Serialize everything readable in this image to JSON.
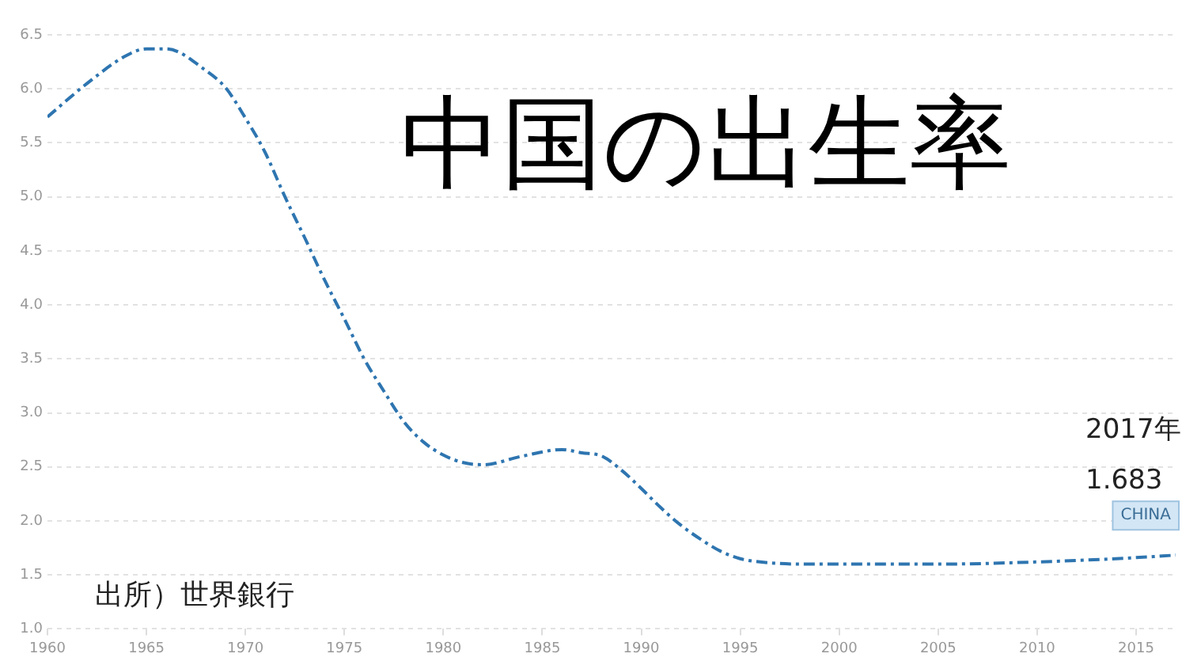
{
  "chart_data": {
    "type": "line",
    "title": "中国の出生率",
    "x": [
      1960,
      1962,
      1964,
      1965,
      1966,
      1968,
      1969,
      1970,
      1971,
      1972,
      1973,
      1974,
      1975,
      1976,
      1977,
      1978,
      1979,
      1980,
      1981,
      1982,
      1984,
      1986,
      1987,
      1988,
      1989,
      1990,
      1991,
      1992,
      1993,
      1994,
      1995,
      1996,
      1998,
      2000,
      2005,
      2010,
      2015,
      2017
    ],
    "series": [
      {
        "name": "CHINA",
        "color": "#2e75b0",
        "values": [
          5.74,
          6.05,
          6.31,
          6.37,
          6.37,
          6.17,
          6.01,
          5.73,
          5.41,
          5.0,
          4.62,
          4.23,
          3.87,
          3.5,
          3.2,
          2.92,
          2.73,
          2.61,
          2.54,
          2.52,
          2.6,
          2.66,
          2.63,
          2.6,
          2.47,
          2.3,
          2.12,
          1.96,
          1.83,
          1.72,
          1.65,
          1.62,
          1.6,
          1.6,
          1.6,
          1.62,
          1.66,
          1.683
        ]
      }
    ],
    "xlim": [
      1960,
      2017
    ],
    "xticks": [
      1960,
      1965,
      1970,
      1975,
      1980,
      1985,
      1990,
      1995,
      2000,
      2005,
      2010,
      2015
    ],
    "ylim": [
      1.0,
      6.5
    ],
    "yticks": [
      {
        "value": 1.0,
        "label": "1.0"
      },
      {
        "value": 1.5,
        "label": "1.5"
      },
      {
        "value": 2.0,
        "label": "2.0"
      },
      {
        "value": 2.5,
        "label": "2.5"
      },
      {
        "value": 3.0,
        "label": "3.0"
      },
      {
        "value": 3.5,
        "label": "3.5"
      },
      {
        "value": 4.0,
        "label": "4.0"
      },
      {
        "value": 4.5,
        "label": "4.5"
      },
      {
        "value": 5.0,
        "label": "5.0"
      },
      {
        "value": 5.5,
        "label": "5.5"
      },
      {
        "value": 6.0,
        "label": "6.0"
      },
      {
        "value": 6.5,
        "label": "6.5"
      }
    ],
    "grid": "y",
    "legend": false,
    "marker": "none",
    "line_style": "dashed",
    "annotations": [
      "2017年",
      "1.683",
      "出所）世界銀行"
    ]
  }
}
